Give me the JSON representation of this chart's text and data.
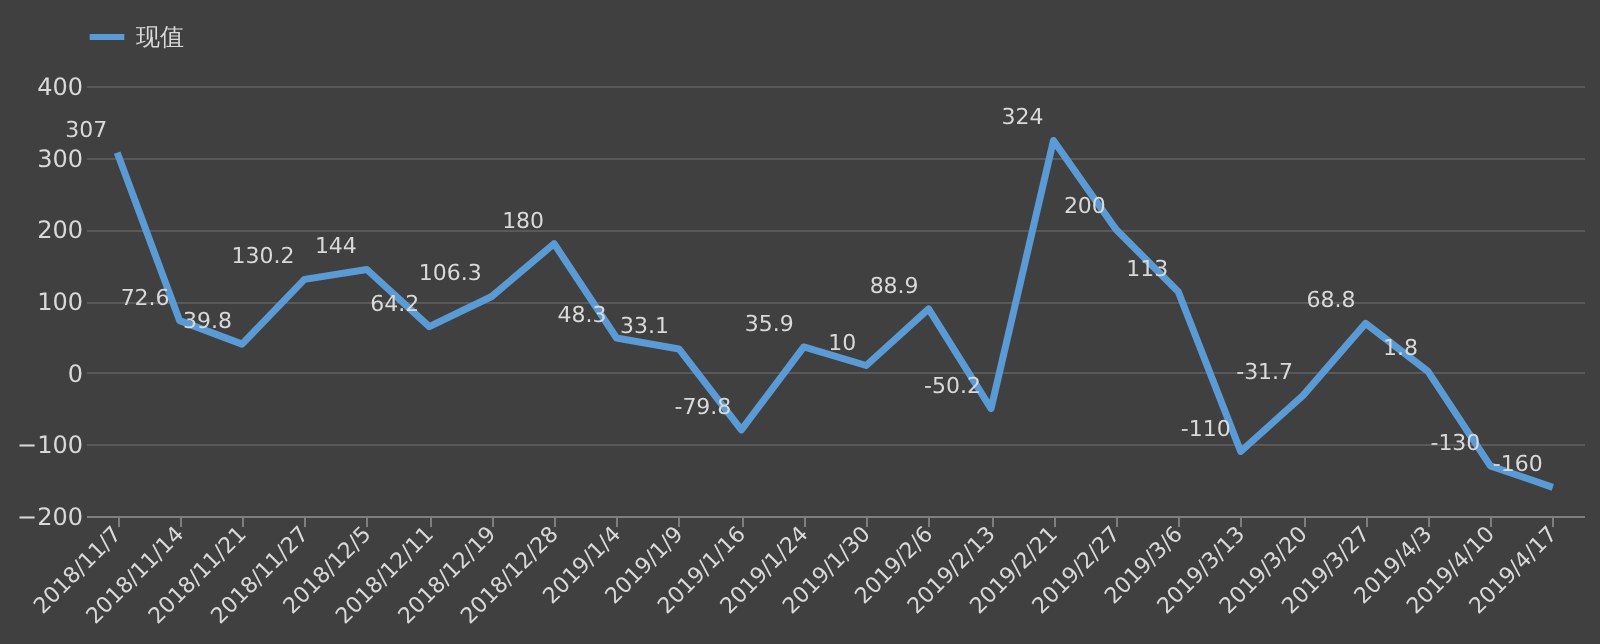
{
  "chart_data": {
    "type": "line",
    "categories": [
      "2018/11/7",
      "2018/11/14",
      "2018/11/21",
      "2018/11/27",
      "2018/12/5",
      "2018/12/11",
      "2018/12/19",
      "2018/12/28",
      "2019/1/4",
      "2019/1/9",
      "2019/1/16",
      "2019/1/24",
      "2019/1/30",
      "2019/2/6",
      "2019/2/13",
      "2019/2/21",
      "2019/2/27",
      "2019/3/6",
      "2019/3/13",
      "2019/3/20",
      "2019/3/27",
      "2019/4/3",
      "2019/4/10",
      "2019/4/17"
    ],
    "series": [
      {
        "name": "现值",
        "color": "#5b9bd5",
        "values": [
          307,
          72.6,
          39.8,
          130.2,
          144,
          64.2,
          106.3,
          180,
          48.3,
          33.1,
          -79.8,
          35.9,
          10,
          88.9,
          -50.2,
          324,
          200,
          113,
          -110,
          -31.7,
          68.8,
          1.8,
          -130,
          -160
        ]
      }
    ],
    "ylim": [
      -200,
      400
    ],
    "yticks": [
      -200,
      -100,
      0,
      100,
      200,
      300,
      400
    ],
    "grid": "y",
    "legend": "top",
    "data_labels": true,
    "marker": "none",
    "line_style": "solid"
  }
}
